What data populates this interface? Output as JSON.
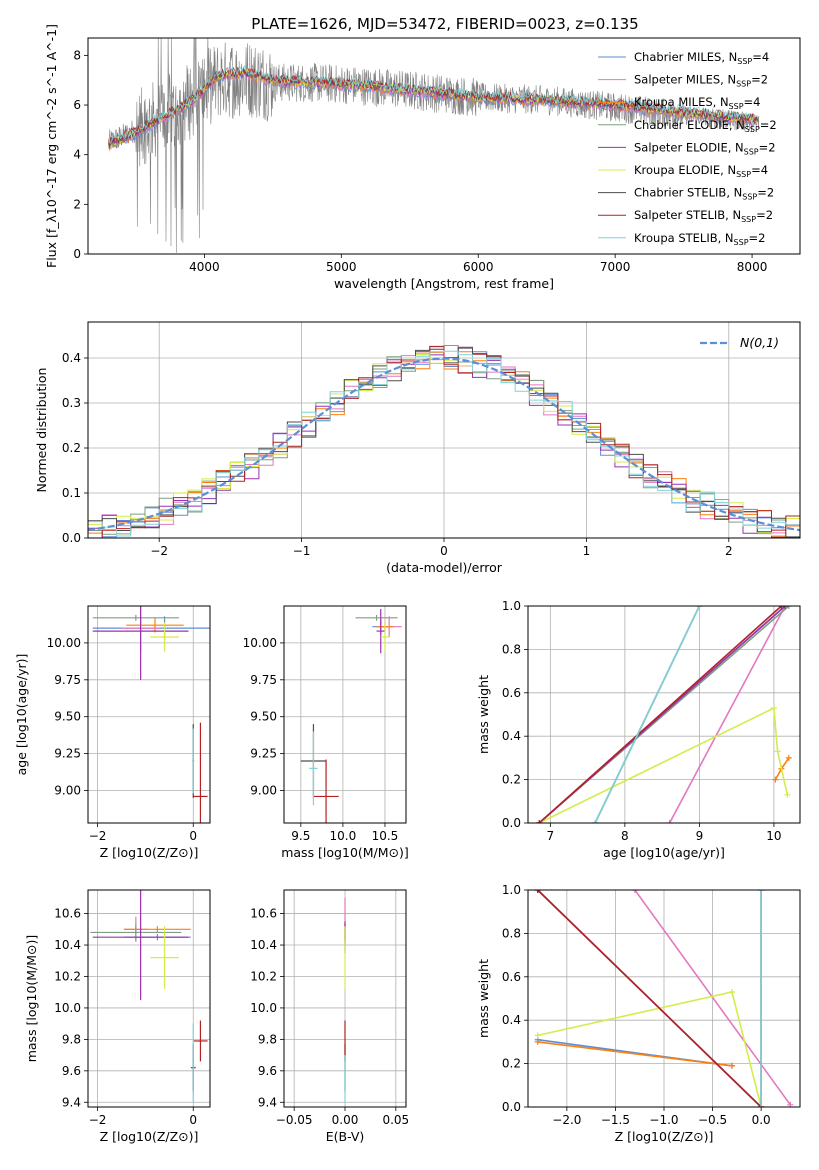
{
  "figure": {
    "title": "PLATE=1626, MJD=53472, FIBERID=0023, z=0.135"
  },
  "colors": [
    "#5b8fd6",
    "#e377c2",
    "#ff7f0e",
    "#7f9f7f",
    "#9b30b0",
    "#d4ec4c",
    "#4d4d4d",
    "#b22222",
    "#7fd3d9"
  ],
  "chart_data": [
    {
      "id": "spectrum",
      "type": "line",
      "title": "PLATE=1626, MJD=53472, FIBERID=0023, z=0.135",
      "xlabel": "wavelength [Angstrom, rest frame]",
      "ylabel": "Flux [f_λ10^-17 erg cm^-2 s^-1 A^-1]",
      "xlim": [
        3150,
        8350
      ],
      "ylim": [
        0,
        8.7
      ],
      "xticks": [
        4000,
        5000,
        6000,
        7000,
        8000
      ],
      "yticks": [
        0,
        2,
        4,
        6,
        8
      ],
      "grid": false,
      "legend_position": "top-right",
      "legend": [
        "Chabrier MILES, N_SSP=4",
        "Salpeter MILES, N_SSP=2",
        "Kroupa MILES, N_SSP=4",
        "Chabrier ELODIE, N_SSP=2",
        "Salpeter ELODIE, N_SSP=2",
        "Kroupa ELODIE, N_SSP=4",
        "Chabrier STELIB, N_SSP=2",
        "Salpeter STELIB, N_SSP=2",
        "Kroupa STELIB, N_SSP=2"
      ],
      "data_series": {
        "name": "data",
        "x": [
          3300,
          3500,
          3700,
          3900,
          4100,
          4300,
          4500,
          4800,
          5100,
          5500,
          6000,
          6500,
          7000,
          7500,
          8000
        ],
        "y": [
          4.5,
          5.0,
          5.6,
          6.2,
          7.0,
          7.1,
          6.9,
          6.9,
          6.8,
          6.6,
          6.3,
          6.2,
          5.9,
          5.6,
          5.3
        ]
      },
      "model_x": [
        3300,
        3500,
        3700,
        3900,
        4100,
        4300,
        4500,
        4800,
        5100,
        5500,
        6000,
        6500,
        7000,
        7500,
        8000
      ],
      "model_y": [
        4.4,
        4.9,
        5.5,
        6.1,
        7.2,
        7.3,
        7.0,
        6.9,
        6.8,
        6.6,
        6.3,
        6.2,
        6.0,
        5.7,
        5.4
      ]
    },
    {
      "id": "residuals",
      "type": "line",
      "xlabel": "(data-model)/error",
      "ylabel": "Normed distribution",
      "xlim": [
        -2.5,
        2.5
      ],
      "ylim": [
        0,
        0.48
      ],
      "xticks": [
        -2,
        -1,
        0,
        1,
        2
      ],
      "yticks": [
        0.0,
        0.1,
        0.2,
        0.3,
        0.4
      ],
      "grid": true,
      "legend_position": "top-right",
      "legend": [
        "N(0,1)"
      ]
    },
    {
      "id": "age-vs-Z",
      "type": "scatter",
      "xlabel": "Z [log10(Z/Z⊙)]",
      "ylabel": "age [log10(age/yr)]",
      "xlim": [
        -2.2,
        0.35
      ],
      "ylim": [
        8.78,
        10.25
      ],
      "xticks": [
        -2,
        0
      ],
      "yticks": [
        9.0,
        9.25,
        9.5,
        9.75,
        10.0
      ],
      "grid": true,
      "points": [
        {
          "x": -0.6,
          "y": 10.1,
          "xerr": 1.5,
          "yerr": 0.08
        },
        {
          "x": -1.1,
          "y": 10.1,
          "xerr": 0.4,
          "yerr": 0.17
        },
        {
          "x": -0.8,
          "y": 10.12,
          "xerr": 0.6,
          "yerr": 0.05
        },
        {
          "x": -1.2,
          "y": 10.17,
          "xerr": 0.9,
          "yerr": 0.02
        },
        {
          "x": -1.1,
          "y": 10.08,
          "xerr": 1.0,
          "yerr": 0.33
        },
        {
          "x": -0.6,
          "y": 10.04,
          "xerr": 0.3,
          "yerr": 0.1
        },
        {
          "x": 0.0,
          "y": 9.2,
          "xerr": 0.02,
          "yerr": 0.25
        },
        {
          "x": 0.15,
          "y": 8.96,
          "xerr": 0.15,
          "yerr": 0.5
        },
        {
          "x": 0.0,
          "y": 9.2,
          "xerr": 0.02,
          "yerr": 0.22
        }
      ]
    },
    {
      "id": "age-vs-mass",
      "type": "scatter",
      "xlabel": "mass [log10(M/M⊙)]",
      "ylabel": "",
      "xlim": [
        9.3,
        10.75
      ],
      "ylim": [
        8.78,
        10.25
      ],
      "xticks": [
        9.5,
        10.0,
        10.5
      ],
      "yticks": [
        9.0,
        9.25,
        9.5,
        9.75,
        10.0
      ],
      "grid": true,
      "points": [
        {
          "x": 10.45,
          "y": 10.11,
          "xerr": 0.1,
          "yerr": 0.05
        },
        {
          "x": 10.55,
          "y": 10.11,
          "xerr": 0.15,
          "yerr": 0.07
        },
        {
          "x": 10.5,
          "y": 10.11,
          "xerr": 0.1,
          "yerr": 0.03
        },
        {
          "x": 10.4,
          "y": 10.17,
          "xerr": 0.25,
          "yerr": 0.02
        },
        {
          "x": 10.45,
          "y": 10.08,
          "xerr": 0.05,
          "yerr": 0.15
        },
        {
          "x": 10.5,
          "y": 10.04,
          "xerr": 0.05,
          "yerr": 0.1
        },
        {
          "x": 9.65,
          "y": 9.2,
          "xerr": 0.15,
          "yerr": 0.25
        },
        {
          "x": 9.8,
          "y": 8.96,
          "xerr": 0.15,
          "yerr": 0.25
        },
        {
          "x": 9.65,
          "y": 9.15,
          "xerr": 0.05,
          "yerr": 0.25
        }
      ]
    },
    {
      "id": "weight-vs-age",
      "type": "line",
      "xlabel": "age [log10(age/yr)]",
      "ylabel": "mass weight",
      "xlim": [
        6.7,
        10.35
      ],
      "ylim": [
        0,
        1
      ],
      "xticks": [
        7,
        8,
        9,
        10
      ],
      "yticks": [
        0.0,
        0.2,
        0.4,
        0.6,
        0.8,
        1.0
      ],
      "grid": true,
      "series": [
        {
          "x": [
            6.85,
            10.15
          ],
          "y": [
            0.0,
            1.0
          ]
        },
        {
          "x": [
            8.6,
            10.15
          ],
          "y": [
            0.0,
            1.0
          ]
        },
        {
          "x": [
            10.02,
            10.1,
            10.2
          ],
          "y": [
            0.2,
            0.25,
            0.3
          ]
        },
        {
          "x": [
            6.85,
            10.2
          ],
          "y": [
            0.0,
            1.0
          ]
        },
        {
          "x": [
            6.85,
            10.15
          ],
          "y": [
            0.0,
            1.0
          ]
        },
        {
          "x": [
            6.85,
            10.0,
            10.05,
            10.18
          ],
          "y": [
            0.0,
            0.53,
            0.33,
            0.13
          ]
        },
        {
          "x": [
            7.6,
            9.0
          ],
          "y": [
            0.0,
            1.0
          ]
        },
        {
          "x": [
            6.85,
            10.1
          ],
          "y": [
            0.0,
            1.0
          ]
        },
        {
          "x": [
            7.6,
            9.0
          ],
          "y": [
            0.0,
            1.0
          ]
        }
      ]
    },
    {
      "id": "mass-vs-Z",
      "type": "scatter",
      "xlabel": "Z [log10(Z/Z⊙)]",
      "ylabel": "mass [log10(M/M⊙)]",
      "xlim": [
        -2.2,
        0.35
      ],
      "ylim": [
        9.37,
        10.75
      ],
      "xticks": [
        -2,
        0
      ],
      "yticks": [
        9.4,
        9.6,
        9.8,
        10.0,
        10.2,
        10.4,
        10.6
      ],
      "grid": true,
      "points": [
        {
          "x": -0.75,
          "y": 10.45,
          "xerr": 0.7,
          "yerr": 0.02
        },
        {
          "x": -1.2,
          "y": 10.5,
          "xerr": 0.25,
          "yerr": 0.08
        },
        {
          "x": -0.75,
          "y": 10.5,
          "xerr": 0.7,
          "yerr": 0.02
        },
        {
          "x": -1.2,
          "y": 10.48,
          "xerr": 0.95,
          "yerr": 0.05
        },
        {
          "x": -1.1,
          "y": 10.45,
          "xerr": 1.0,
          "yerr": 0.4
        },
        {
          "x": -0.6,
          "y": 10.32,
          "xerr": 0.3,
          "yerr": 0.2
        },
        {
          "x": 0.0,
          "y": 9.62,
          "xerr": 0.05,
          "yerr": 0.15
        },
        {
          "x": 0.15,
          "y": 9.79,
          "xerr": 0.15,
          "yerr": 0.13
        },
        {
          "x": 0.0,
          "y": 9.65,
          "xerr": 0.02,
          "yerr": 0.25
        }
      ]
    },
    {
      "id": "mass-vs-ebv",
      "type": "scatter",
      "xlabel": "E(B-V)",
      "ylabel": "",
      "xlim": [
        -0.06,
        0.06
      ],
      "ylim": [
        9.37,
        10.75
      ],
      "xticks": [
        -0.05,
        0.0,
        0.05
      ],
      "yticks": [
        9.4,
        9.6,
        9.8,
        10.0,
        10.2,
        10.4,
        10.6
      ],
      "grid": true,
      "points": [
        {
          "x": 0.0,
          "y": 10.45,
          "xerr": 0,
          "yerr": 0.02
        },
        {
          "x": 0.0,
          "y": 10.55,
          "xerr": 0,
          "yerr": 0.15
        },
        {
          "x": 0.0,
          "y": 10.5,
          "xerr": 0,
          "yerr": 0.03
        },
        {
          "x": 0.0,
          "y": 10.48,
          "xerr": 0,
          "yerr": 0.05
        },
        {
          "x": 0.0,
          "y": 10.45,
          "xerr": 0,
          "yerr": 0.1
        },
        {
          "x": 0.0,
          "y": 10.32,
          "xerr": 0,
          "yerr": 0.2
        },
        {
          "x": 0.0,
          "y": 9.62,
          "xerr": 0,
          "yerr": 0.15
        },
        {
          "x": 0.0,
          "y": 9.79,
          "xerr": 0,
          "yerr": 0.13
        },
        {
          "x": 0.0,
          "y": 9.55,
          "xerr": 0,
          "yerr": 0.15
        }
      ]
    },
    {
      "id": "weight-vs-Z",
      "type": "line",
      "xlabel": "Z [log10(Z/Z⊙)]",
      "ylabel": "mass weight",
      "xlim": [
        -2.4,
        0.4
      ],
      "ylim": [
        0,
        1
      ],
      "xticks": [
        -2.0,
        -1.5,
        -1.0,
        -0.5,
        0.0
      ],
      "yticks": [
        0.0,
        0.2,
        0.4,
        0.6,
        0.8,
        1.0
      ],
      "grid": true,
      "series": [
        {
          "x": [
            -2.3,
            -0.3
          ],
          "y": [
            0.31,
            0.19
          ]
        },
        {
          "x": [
            -1.3,
            0.3
          ],
          "y": [
            1.0,
            0.01
          ]
        },
        {
          "x": [
            -2.3,
            -0.3
          ],
          "y": [
            0.3,
            0.19
          ]
        },
        {
          "x": [
            -2.3,
            0.0
          ],
          "y": [
            1.0,
            0.0
          ]
        },
        {
          "x": [
            -2.3,
            0.0
          ],
          "y": [
            1.0,
            0.0
          ]
        },
        {
          "x": [
            -2.3,
            -0.3,
            0.0
          ],
          "y": [
            0.33,
            0.53,
            0.0
          ]
        },
        {
          "x": [
            0.0,
            0.0
          ],
          "y": [
            0.0,
            1.0
          ]
        },
        {
          "x": [
            -2.3,
            0.0
          ],
          "y": [
            1.0,
            0.0
          ]
        },
        {
          "x": [
            0.0,
            0.0
          ],
          "y": [
            0.0,
            1.0
          ]
        }
      ]
    }
  ]
}
